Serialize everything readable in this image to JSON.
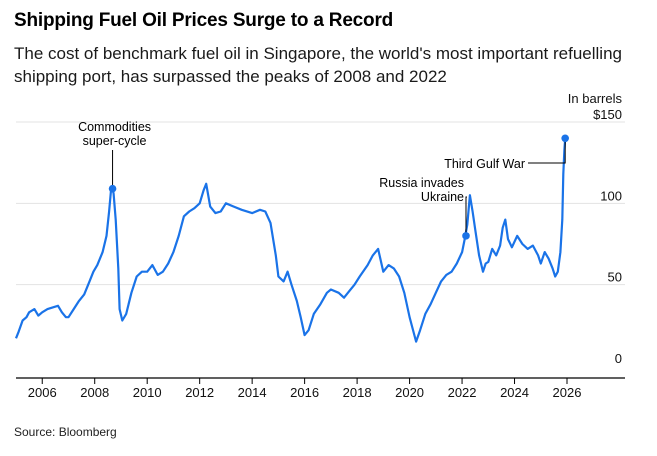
{
  "header": {
    "title": "Shipping Fuel Oil Prices Surge to a Record",
    "subtitle": "The cost of benchmark fuel oil in Singapore, the world's most important refuelling shipping port, has surpassed the peaks of 2008 and 2022"
  },
  "footer": {
    "source": "Source: Bloomberg"
  },
  "colors": {
    "line": "#1a73e8",
    "grid": "#e3e3e3",
    "axis": "#000000",
    "leader": "#000000"
  },
  "chart_data": {
    "type": "line",
    "title": "Shipping Fuel Oil Prices Surge to a Record",
    "unit_label": "In barrels",
    "y_tick_labels": [
      "$150",
      "100",
      "50",
      "0"
    ],
    "y_ticks": [
      150,
      100,
      50,
      0
    ],
    "x_tick_labels": [
      "2006",
      "2008",
      "2010",
      "2012",
      "2014",
      "2016",
      "2018",
      "2020",
      "2022",
      "2024",
      "2026"
    ],
    "x_ticks": [
      2006,
      2008,
      2010,
      2012,
      2014,
      2016,
      2018,
      2020,
      2022,
      2024,
      2026
    ],
    "xlim": [
      2005.0,
      2026.8
    ],
    "ylim": [
      0,
      150
    ],
    "grid": true,
    "y_axis_side": "right",
    "series": [
      {
        "points": [
          [
            2005.0,
            17
          ],
          [
            2005.1,
            21
          ],
          [
            2005.25,
            28
          ],
          [
            2005.4,
            30
          ],
          [
            2005.5,
            33
          ],
          [
            2005.7,
            35
          ],
          [
            2005.85,
            31
          ],
          [
            2006.0,
            33
          ],
          [
            2006.2,
            35
          ],
          [
            2006.4,
            36
          ],
          [
            2006.6,
            37
          ],
          [
            2006.75,
            33
          ],
          [
            2006.9,
            30
          ],
          [
            2007.0,
            30
          ],
          [
            2007.2,
            35
          ],
          [
            2007.4,
            40
          ],
          [
            2007.6,
            44
          ],
          [
            2007.8,
            52
          ],
          [
            2007.95,
            58
          ],
          [
            2008.1,
            62
          ],
          [
            2008.3,
            70
          ],
          [
            2008.45,
            80
          ],
          [
            2008.55,
            95
          ],
          [
            2008.62,
            108
          ],
          [
            2008.68,
            109
          ],
          [
            2008.72,
            106
          ],
          [
            2008.8,
            90
          ],
          [
            2008.9,
            60
          ],
          [
            2008.95,
            35
          ],
          [
            2009.05,
            28
          ],
          [
            2009.2,
            32
          ],
          [
            2009.4,
            45
          ],
          [
            2009.6,
            55
          ],
          [
            2009.8,
            58
          ],
          [
            2010.0,
            58
          ],
          [
            2010.2,
            62
          ],
          [
            2010.4,
            56
          ],
          [
            2010.6,
            58
          ],
          [
            2010.8,
            63
          ],
          [
            2011.0,
            70
          ],
          [
            2011.2,
            80
          ],
          [
            2011.4,
            92
          ],
          [
            2011.6,
            95
          ],
          [
            2011.8,
            97
          ],
          [
            2012.0,
            100
          ],
          [
            2012.15,
            108
          ],
          [
            2012.25,
            112
          ],
          [
            2012.4,
            98
          ],
          [
            2012.6,
            94
          ],
          [
            2012.8,
            95
          ],
          [
            2013.0,
            100
          ],
          [
            2013.3,
            98
          ],
          [
            2013.6,
            96
          ],
          [
            2014.0,
            94
          ],
          [
            2014.3,
            96
          ],
          [
            2014.5,
            95
          ],
          [
            2014.7,
            88
          ],
          [
            2014.9,
            68
          ],
          [
            2015.0,
            55
          ],
          [
            2015.2,
            52
          ],
          [
            2015.35,
            58
          ],
          [
            2015.5,
            50
          ],
          [
            2015.7,
            40
          ],
          [
            2015.85,
            30
          ],
          [
            2016.0,
            19
          ],
          [
            2016.15,
            22
          ],
          [
            2016.35,
            32
          ],
          [
            2016.6,
            38
          ],
          [
            2016.85,
            45
          ],
          [
            2017.0,
            47
          ],
          [
            2017.3,
            45
          ],
          [
            2017.5,
            42
          ],
          [
            2017.7,
            46
          ],
          [
            2017.9,
            50
          ],
          [
            2018.1,
            55
          ],
          [
            2018.4,
            62
          ],
          [
            2018.6,
            68
          ],
          [
            2018.8,
            72
          ],
          [
            2019.0,
            58
          ],
          [
            2019.2,
            62
          ],
          [
            2019.4,
            60
          ],
          [
            2019.6,
            55
          ],
          [
            2019.8,
            45
          ],
          [
            2020.0,
            30
          ],
          [
            2020.1,
            24
          ],
          [
            2020.25,
            15
          ],
          [
            2020.4,
            22
          ],
          [
            2020.6,
            32
          ],
          [
            2020.8,
            38
          ],
          [
            2021.0,
            45
          ],
          [
            2021.2,
            52
          ],
          [
            2021.4,
            56
          ],
          [
            2021.6,
            58
          ],
          [
            2021.8,
            63
          ],
          [
            2022.0,
            70
          ],
          [
            2022.1,
            78
          ],
          [
            2022.2,
            87
          ],
          [
            2022.3,
            105
          ],
          [
            2022.4,
            95
          ],
          [
            2022.5,
            84
          ],
          [
            2022.65,
            68
          ],
          [
            2022.8,
            58
          ],
          [
            2022.9,
            63
          ],
          [
            2023.0,
            64
          ],
          [
            2023.15,
            72
          ],
          [
            2023.3,
            68
          ],
          [
            2023.45,
            74
          ],
          [
            2023.55,
            85
          ],
          [
            2023.65,
            90
          ],
          [
            2023.75,
            78
          ],
          [
            2023.9,
            73
          ],
          [
            2024.1,
            80
          ],
          [
            2024.3,
            75
          ],
          [
            2024.5,
            72
          ],
          [
            2024.7,
            74
          ],
          [
            2024.9,
            68
          ],
          [
            2025.0,
            63
          ],
          [
            2025.15,
            70
          ],
          [
            2025.3,
            66
          ],
          [
            2025.45,
            60
          ],
          [
            2025.55,
            55
          ],
          [
            2025.65,
            58
          ],
          [
            2025.75,
            70
          ],
          [
            2025.82,
            90
          ],
          [
            2025.86,
            118
          ],
          [
            2025.9,
            133
          ],
          [
            2025.93,
            140
          ]
        ]
      }
    ],
    "annotations": [
      {
        "text": [
          "Commodities",
          "super-cycle"
        ],
        "x": 2008.68,
        "y": 109
      },
      {
        "text": [
          "Russia invades",
          "Ukraine"
        ],
        "x": 2022.15,
        "y": 80
      },
      {
        "text": [
          "Third Gulf War"
        ],
        "x": 2025.93,
        "y": 140
      }
    ]
  }
}
